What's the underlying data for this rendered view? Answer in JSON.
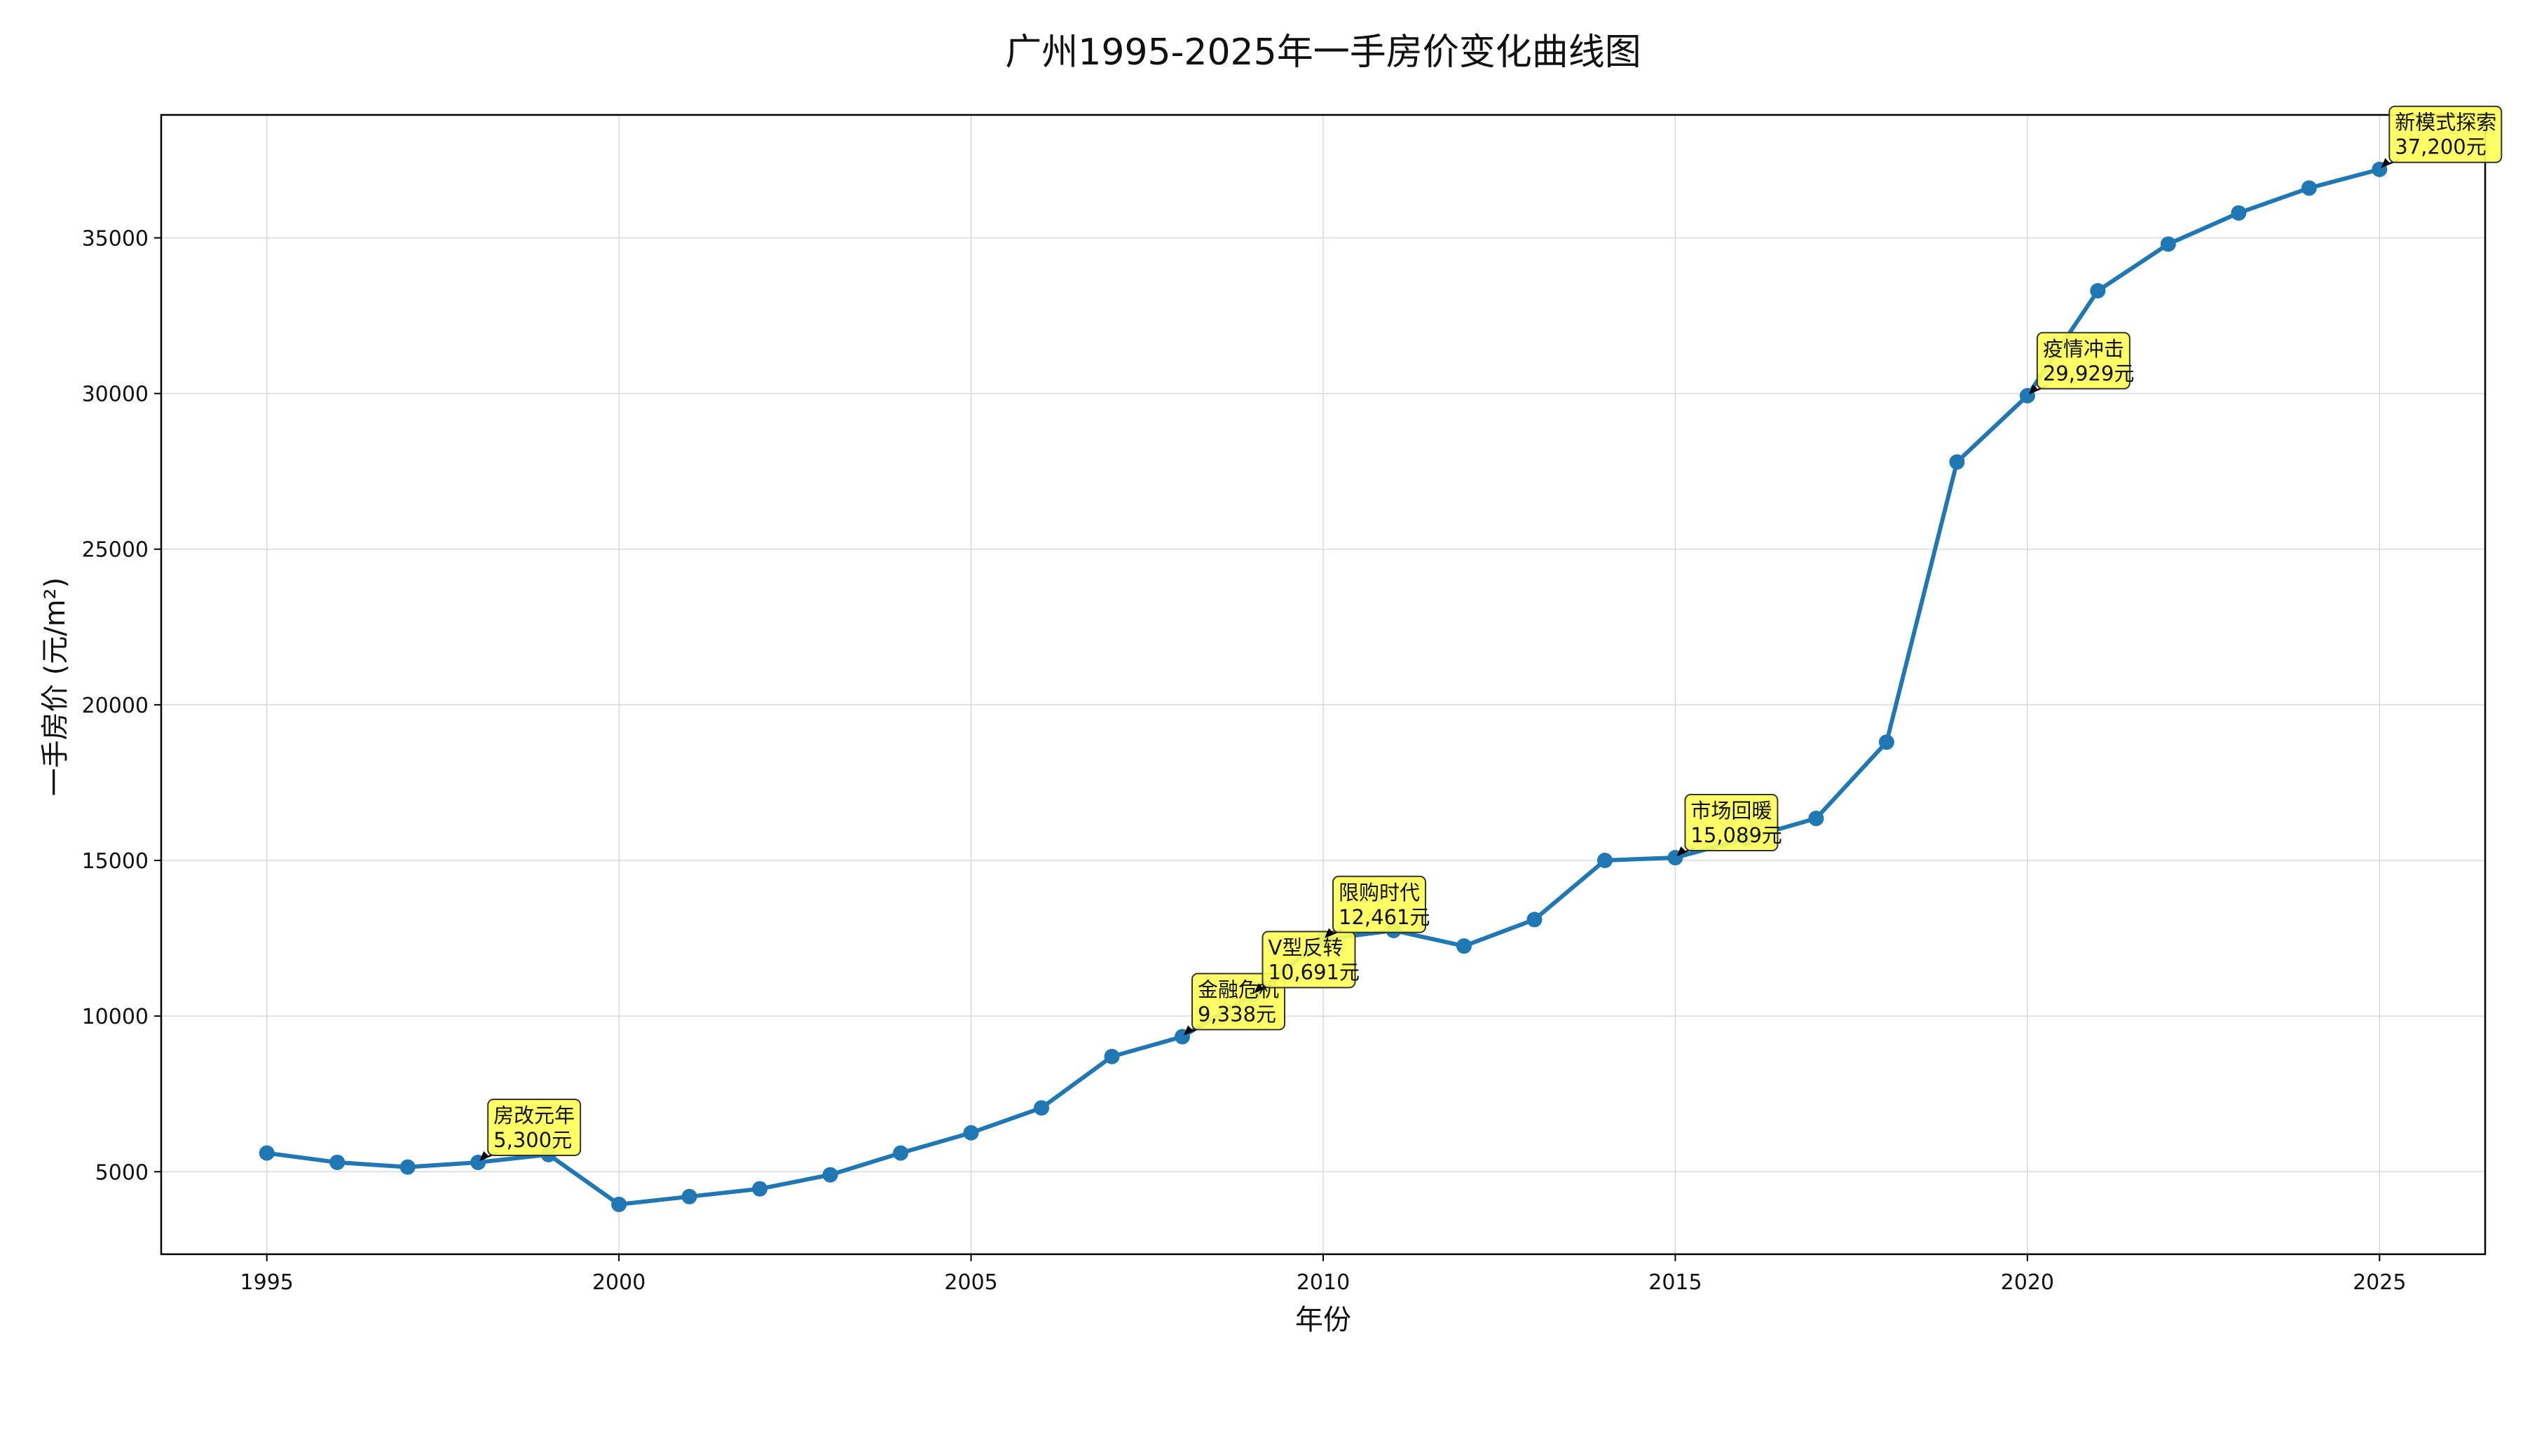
{
  "chart_data": {
    "type": "line",
    "title": "广州1995-2025年一手房价变化曲线图",
    "xlabel": "年份",
    "ylabel": "一手房价 (元/m²)",
    "xlim": [
      1993.5,
      2026.5
    ],
    "ylim": [
      2350,
      38950
    ],
    "grid": true,
    "x_ticks": [
      1995,
      2000,
      2005,
      2010,
      2015,
      2020,
      2025
    ],
    "y_ticks": [
      5000,
      10000,
      15000,
      20000,
      25000,
      30000,
      35000
    ],
    "x_tick_labels": [
      "1995",
      "2000",
      "2005",
      "2010",
      "2015",
      "2020",
      "2025"
    ],
    "y_tick_labels": [
      "5000",
      "10000",
      "15000",
      "20000",
      "25000",
      "30000",
      "35000"
    ],
    "series": [
      {
        "name": "一手房价",
        "color": "#1f77b4",
        "x": [
          1995,
          1996,
          1997,
          1998,
          1999,
          2000,
          2001,
          2002,
          2003,
          2004,
          2005,
          2006,
          2007,
          2008,
          2009,
          2010,
          2011,
          2012,
          2013,
          2014,
          2015,
          2016,
          2017,
          2018,
          2019,
          2020,
          2021,
          2022,
          2023,
          2024,
          2025
        ],
        "values": [
          5600,
          5300,
          5150,
          5300,
          5550,
          3950,
          4200,
          4450,
          4900,
          5600,
          6250,
          7050,
          8700,
          9338,
          10691,
          12461,
          12750,
          12250,
          13100,
          15000,
          15089,
          15700,
          16350,
          18800,
          27800,
          29929,
          33300,
          34800,
          35800,
          36600,
          37200
        ]
      }
    ],
    "annotations": [
      {
        "x": 1998,
        "y": 5300,
        "label": "房改元年",
        "value": "5,300元"
      },
      {
        "x": 2008,
        "y": 9338,
        "label": "金融危机",
        "value": "9,338元"
      },
      {
        "x": 2009,
        "y": 10691,
        "label": "V型反转",
        "value": "10,691元"
      },
      {
        "x": 2010,
        "y": 12461,
        "label": "限购时代",
        "value": "12,461元"
      },
      {
        "x": 2015,
        "y": 15089,
        "label": "市场回暖",
        "value": "15,089元"
      },
      {
        "x": 2020,
        "y": 29929,
        "label": "疫情冲击",
        "value": "29,929元"
      },
      {
        "x": 2025,
        "y": 37200,
        "label": "新模式探索",
        "value": "37,200元"
      }
    ],
    "annotation_color": "#ffff55"
  }
}
